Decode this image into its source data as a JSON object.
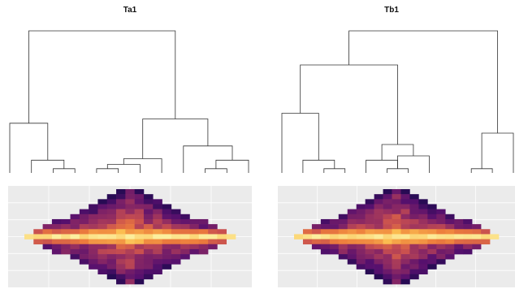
{
  "chart_data": {
    "type": "heatmap",
    "panels": [
      {
        "title": "Ta1",
        "dendrogram": {
          "leaves": 12,
          "merges": [
            {
              "left": 3,
              "right": 4,
              "height": 0.03
            },
            {
              "left": 2,
              "right": 3.5,
              "height": 0.09
            },
            {
              "left": 1,
              "right": 2.75,
              "height": 0.35
            },
            {
              "left": 5,
              "right": 6,
              "height": 0.03
            },
            {
              "left": 5.5,
              "right": 7,
              "height": 0.06
            },
            {
              "left": 6.25,
              "right": 8,
              "height": 0.1
            },
            {
              "left": 10,
              "right": 11,
              "height": 0.03
            },
            {
              "left": 10.5,
              "right": 12,
              "height": 0.09
            },
            {
              "left": 9,
              "right": 11.25,
              "height": 0.19
            },
            {
              "left": 7.125,
              "right": 10.125,
              "height": 0.38
            },
            {
              "left": 1.875,
              "right": 8.625,
              "height": 1.0
            }
          ]
        }
      },
      {
        "title": "Tb1",
        "dendrogram": {
          "leaves": 12,
          "merges": [
            {
              "left": 3,
              "right": 4,
              "height": 0.03
            },
            {
              "left": 2,
              "right": 3.5,
              "height": 0.09
            },
            {
              "left": 1,
              "right": 2.75,
              "height": 0.42
            },
            {
              "left": 6,
              "right": 7,
              "height": 0.03
            },
            {
              "left": 5,
              "right": 6.5,
              "height": 0.09
            },
            {
              "left": 6.5,
              "right": 8,
              "height": 0.12
            },
            {
              "left": 5.75,
              "right": 7.25,
              "height": 0.2
            },
            {
              "left": 1.875,
              "right": 6.5,
              "height": 0.76
            },
            {
              "left": 10,
              "right": 11,
              "height": 0.03
            },
            {
              "left": 10.5,
              "right": 12,
              "height": 0.28
            },
            {
              "left": 4.1875,
              "right": 11.25,
              "height": 1.0
            }
          ]
        }
      }
    ],
    "heatmap": {
      "columns": 23,
      "rows": 19,
      "center_row": 9,
      "value_range": [
        0,
        1
      ],
      "colormap": "inferno",
      "grid": true,
      "axes_labels": false
    }
  }
}
